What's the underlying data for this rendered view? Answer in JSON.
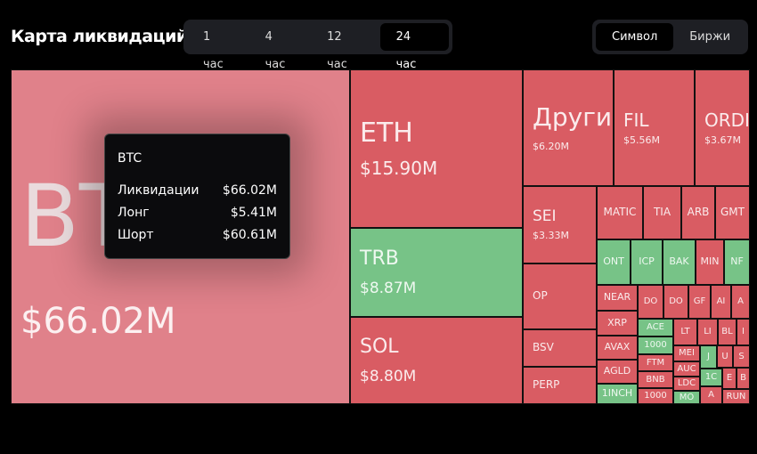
{
  "header": {
    "title": "Карта ликвидаций"
  },
  "time_tabs": {
    "items": [
      "1 час",
      "4 час",
      "12 час",
      "24 час"
    ],
    "selected": 3
  },
  "view_tabs": {
    "items": [
      "Символ",
      "Биржи"
    ],
    "selected": 0
  },
  "tiles": [
    {
      "label": "BTC",
      "value": "$66.02M",
      "color": "#e0818a"
    },
    {
      "label": "ETH",
      "value": "$15.90M",
      "color": "#d95c63"
    },
    {
      "label": "TRB",
      "value": "$8.87M",
      "color": "#77c387"
    },
    {
      "label": "SOL",
      "value": "$8.80M",
      "color": "#d95c63"
    },
    {
      "label": "Другие",
      "value": "$6.20M",
      "color": "#d95c63"
    },
    {
      "label": "FIL",
      "value": "$5.56M",
      "color": "#d95c63"
    },
    {
      "label": "ORDI",
      "value": "$3.67M",
      "color": "#d95c63"
    },
    {
      "label": "SEI",
      "value": "$3.33M",
      "color": "#d95c63"
    },
    {
      "label": "OP",
      "color": "#d95c63"
    },
    {
      "label": "BSV",
      "color": "#d95c63"
    },
    {
      "label": "PERP",
      "color": "#d95c63"
    },
    {
      "label": "MATIC",
      "color": "#d95c63"
    },
    {
      "label": "TIA",
      "color": "#d95c63"
    },
    {
      "label": "ARB",
      "color": "#d95c63"
    },
    {
      "label": "GMT",
      "color": "#d95c63"
    },
    {
      "label": "ONT",
      "color": "#77c387"
    },
    {
      "label": "ICP",
      "color": "#77c387"
    },
    {
      "label": "BAK",
      "color": "#77c387"
    },
    {
      "label": "MIN",
      "color": "#d95c63"
    },
    {
      "label": "NF",
      "color": "#77c387"
    },
    {
      "label": "NEAR",
      "color": "#d95c63"
    },
    {
      "label": "XRP",
      "color": "#d95c63"
    },
    {
      "label": "AVAX",
      "color": "#d95c63"
    },
    {
      "label": "AGLD",
      "color": "#d95c63"
    },
    {
      "label": "1INCH",
      "color": "#77c387"
    },
    {
      "label": "DO",
      "color": "#d95c63"
    },
    {
      "label": "DO",
      "color": "#d95c63"
    },
    {
      "label": "GF",
      "color": "#d95c63"
    },
    {
      "label": "AI",
      "color": "#d95c63"
    },
    {
      "label": "A",
      "color": "#d95c63"
    },
    {
      "label": "ACE",
      "color": "#77c387"
    },
    {
      "label": "1000",
      "color": "#77c387"
    },
    {
      "label": "LT",
      "color": "#d95c63"
    },
    {
      "label": "LI",
      "color": "#d95c63"
    },
    {
      "label": "BL",
      "color": "#d95c63"
    },
    {
      "label": "I",
      "color": "#d95c63"
    },
    {
      "label": "FTM",
      "color": "#d95c63"
    },
    {
      "label": "BNB",
      "color": "#d95c63"
    },
    {
      "label": "1000",
      "color": "#d95c63"
    },
    {
      "label": "MEI",
      "color": "#d95c63"
    },
    {
      "label": "AUC",
      "color": "#d95c63"
    },
    {
      "label": "LDC",
      "color": "#d95c63"
    },
    {
      "label": "MO",
      "color": "#77c387"
    },
    {
      "label": "J",
      "color": "#77c387"
    },
    {
      "label": "1C",
      "color": "#77c387"
    },
    {
      "label": "A",
      "color": "#d95c63"
    },
    {
      "label": "U",
      "color": "#d95c63"
    },
    {
      "label": "S",
      "color": "#d95c63"
    },
    {
      "label": "E",
      "color": "#d95c63"
    },
    {
      "label": "B",
      "color": "#d95c63"
    },
    {
      "label": "RUN",
      "color": "#d95c63"
    }
  ],
  "tooltip": {
    "symbol": "BTC",
    "rows": [
      [
        "Ликвидации",
        "$66.02M"
      ],
      [
        "Лонг",
        "$5.41M"
      ],
      [
        "Шорт",
        "$60.61M"
      ]
    ]
  }
}
